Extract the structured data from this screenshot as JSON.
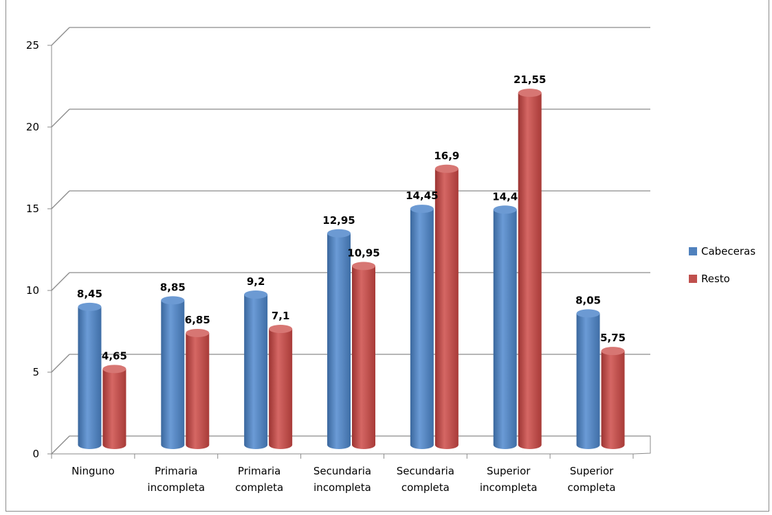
{
  "chart_data": {
    "type": "bar",
    "title": "",
    "xlabel": "",
    "ylabel": "",
    "ylim": [
      0,
      25
    ],
    "yticks": [
      "0",
      "5",
      "10",
      "15",
      "20",
      "25"
    ],
    "categories": [
      [
        "Ninguno"
      ],
      [
        "Primaria",
        "incompleta"
      ],
      [
        "Primaria",
        "completa"
      ],
      [
        "Secundaria",
        "incompleta"
      ],
      [
        "Secundaria",
        "completa"
      ],
      [
        "Superior",
        "incompleta"
      ],
      [
        "Superior",
        "completa"
      ]
    ],
    "series": [
      {
        "name": "Cabeceras",
        "color": "#4f81bd",
        "values": [
          8.45,
          8.85,
          9.2,
          12.95,
          14.45,
          14.4,
          8.05
        ],
        "labels": [
          "8,45",
          "8,85",
          "9,2",
          "12,95",
          "14,45",
          "14,4",
          "8,05"
        ]
      },
      {
        "name": "Resto",
        "color": "#c0504d",
        "values": [
          4.65,
          6.85,
          7.1,
          10.95,
          16.9,
          21.55,
          5.75
        ],
        "labels": [
          "4,65",
          "6,85",
          "7,1",
          "10,95",
          "16,9",
          "21,55",
          "5,75"
        ]
      }
    ],
    "grid": true,
    "legend_position": "right"
  }
}
